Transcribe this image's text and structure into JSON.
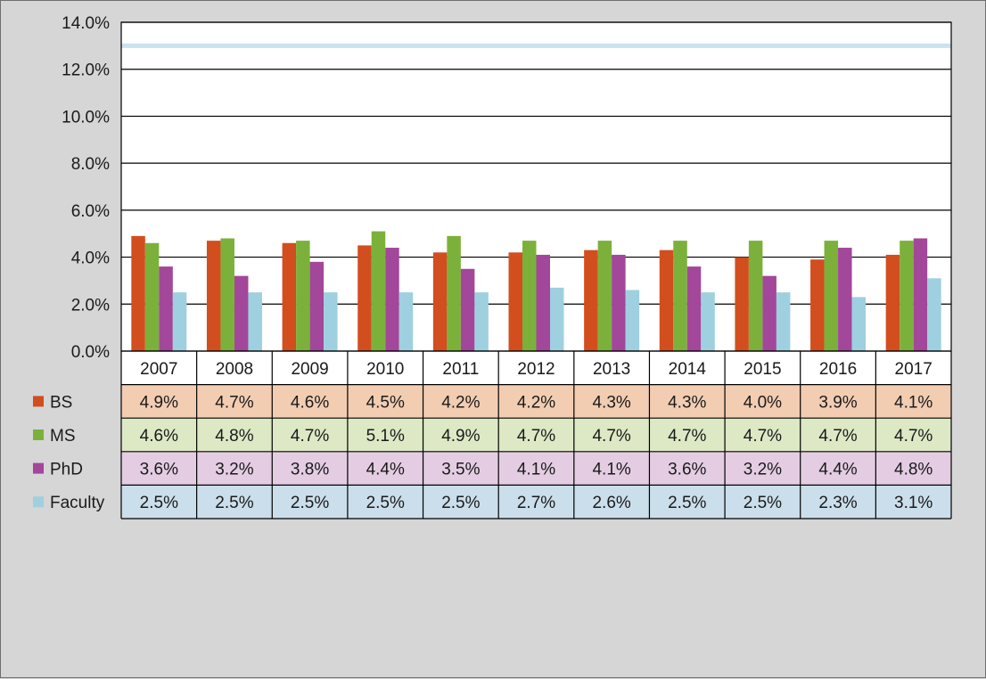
{
  "chart_data": {
    "type": "bar",
    "categories": [
      "2007",
      "2008",
      "2009",
      "2010",
      "2011",
      "2012",
      "2013",
      "2014",
      "2015",
      "2016",
      "2017"
    ],
    "series": [
      {
        "name": "BS",
        "color": "#d24e1f",
        "values": [
          4.9,
          4.7,
          4.6,
          4.5,
          4.2,
          4.2,
          4.3,
          4.3,
          4.0,
          3.9,
          4.1
        ],
        "labels": [
          "4.9%",
          "4.7%",
          "4.6%",
          "4.5%",
          "4.2%",
          "4.2%",
          "4.3%",
          "4.3%",
          "4.0%",
          "3.9%",
          "4.1%"
        ],
        "row_color": "#f2cdb2"
      },
      {
        "name": "MS",
        "color": "#7bb13a",
        "values": [
          4.6,
          4.8,
          4.7,
          5.1,
          4.9,
          4.7,
          4.7,
          4.7,
          4.7,
          4.7,
          4.7
        ],
        "labels": [
          "4.6%",
          "4.8%",
          "4.7%",
          "5.1%",
          "4.9%",
          "4.7%",
          "4.7%",
          "4.7%",
          "4.7%",
          "4.7%",
          "4.7%"
        ],
        "row_color": "#dde8c5"
      },
      {
        "name": "PhD",
        "color": "#a2479a",
        "values": [
          3.6,
          3.2,
          3.8,
          4.4,
          3.5,
          4.1,
          4.1,
          3.6,
          3.2,
          4.4,
          4.8
        ],
        "labels": [
          "3.6%",
          "3.2%",
          "3.8%",
          "4.4%",
          "3.5%",
          "4.1%",
          "4.1%",
          "3.6%",
          "3.2%",
          "4.4%",
          "4.8%"
        ],
        "row_color": "#e4cde3"
      },
      {
        "name": "Faculty",
        "color": "#9ed0e0",
        "values": [
          2.5,
          2.5,
          2.5,
          2.5,
          2.5,
          2.7,
          2.6,
          2.5,
          2.5,
          2.3,
          3.1
        ],
        "labels": [
          "2.5%",
          "2.5%",
          "2.5%",
          "2.5%",
          "2.5%",
          "2.7%",
          "2.6%",
          "2.5%",
          "2.5%",
          "2.3%",
          "3.1%"
        ],
        "row_color": "#cbdeeb"
      }
    ],
    "yticks": [
      "0.0%",
      "2.0%",
      "4.0%",
      "6.0%",
      "8.0%",
      "10.0%",
      "12.0%",
      "14.0%"
    ],
    "ylim": [
      0,
      14
    ],
    "reference_line": {
      "value": 13,
      "color": "#c9e3ef"
    },
    "grid": true,
    "legend": "data table rows"
  }
}
